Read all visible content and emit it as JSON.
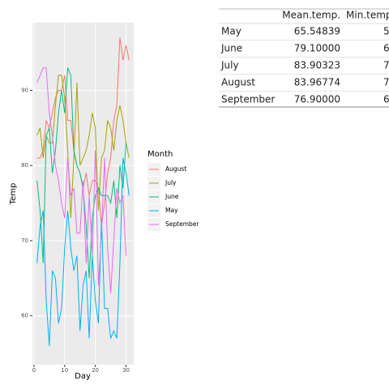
{
  "chart_data": {
    "type": "line",
    "x_label": "Day",
    "y_label": "Temp",
    "legend_title": "Month",
    "x": [
      1,
      2,
      3,
      4,
      5,
      6,
      7,
      8,
      9,
      10,
      11,
      12,
      13,
      14,
      15,
      16,
      17,
      18,
      19,
      20,
      21,
      22,
      23,
      24,
      25,
      26,
      27,
      28,
      29,
      30,
      31
    ],
    "series": [
      {
        "name": "August",
        "color": "#F8766D",
        "values": [
          81,
          81,
          82,
          86,
          85,
          87,
          89,
          90,
          90,
          92,
          86,
          86,
          82,
          80,
          79,
          77,
          79,
          76,
          78,
          78,
          77,
          72,
          75,
          79,
          81,
          86,
          88,
          97,
          94,
          96,
          94
        ]
      },
      {
        "name": "July",
        "color": "#A3A500",
        "values": [
          84,
          85,
          81,
          84,
          83,
          83,
          88,
          92,
          92,
          89,
          82,
          73,
          81,
          91,
          80,
          81,
          82,
          84,
          87,
          85,
          74,
          81,
          82,
          86,
          85,
          82,
          86,
          88,
          86,
          83,
          81
        ]
      },
      {
        "name": "June",
        "color": "#00BF7D",
        "values": [
          78,
          74,
          67,
          84,
          85,
          79,
          82,
          87,
          90,
          87,
          93,
          92,
          82,
          80,
          79,
          77,
          72,
          65,
          73,
          76,
          77,
          76,
          76,
          76,
          75,
          78,
          73,
          80,
          77,
          83,
          null
        ]
      },
      {
        "name": "May",
        "color": "#00B0F6",
        "values": [
          67,
          72,
          74,
          62,
          56,
          66,
          65,
          59,
          61,
          69,
          74,
          69,
          66,
          68,
          58,
          64,
          66,
          57,
          68,
          62,
          59,
          73,
          61,
          61,
          57,
          58,
          57,
          67,
          81,
          79,
          76
        ]
      },
      {
        "name": "September",
        "color": "#E76BF3",
        "values": [
          91,
          92,
          93,
          93,
          87,
          84,
          80,
          78,
          75,
          73,
          81,
          76,
          77,
          71,
          71,
          78,
          67,
          76,
          68,
          82,
          64,
          71,
          81,
          69,
          63,
          70,
          77,
          75,
          76,
          68,
          null
        ]
      }
    ],
    "xlim": [
      -0.5,
      32.5
    ],
    "xticks": [
      0,
      10,
      20,
      30
    ],
    "ylim": [
      53.5,
      99
    ],
    "yticks": [
      60,
      70,
      80,
      90
    ],
    "grid": true
  },
  "table": {
    "header": [
      "Mean.temp.",
      "Min.temp"
    ],
    "rows": [
      [
        "May",
        "65.54839",
        "5"
      ],
      [
        "June",
        "79.10000",
        "6"
      ],
      [
        "July",
        "83.90323",
        "7"
      ],
      [
        "August",
        "83.96774",
        "7"
      ],
      [
        "September",
        "76.90000",
        "6"
      ]
    ]
  }
}
